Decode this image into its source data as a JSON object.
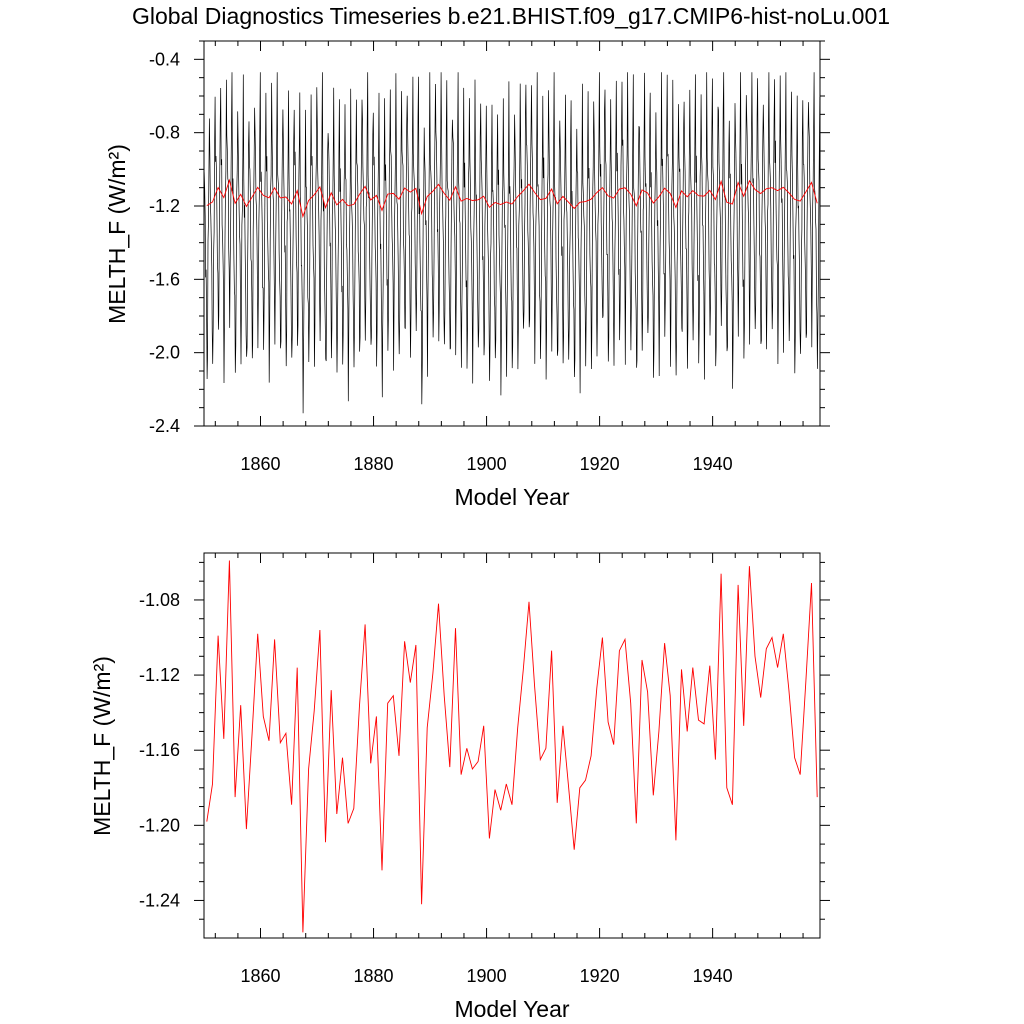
{
  "title": "Global Diagnostics Timeseries b.e21.BHIST.f09_g17.CMIP6-hist-noLu.001",
  "colors": {
    "monthly": "#000000",
    "annual": "#ff0000"
  },
  "chart_data": [
    {
      "type": "line",
      "xlabel": "Model Year",
      "ylabel": "MELTH_F (W/m²)",
      "xlim": [
        1850,
        1959
      ],
      "ylim": [
        -2.4,
        -0.3
      ],
      "x_ticks": [
        1860,
        1880,
        1900,
        1920,
        1940
      ],
      "x_tick_labels": [
        "1860",
        "1880",
        "1900",
        "1920",
        "1940"
      ],
      "y_ticks": [
        -0.4,
        -0.8,
        -1.2,
        -1.6,
        -2.0,
        -2.4
      ],
      "y_tick_labels": [
        "-0.4",
        "-0.8",
        "-1.2",
        "-1.6",
        "-2.0",
        "-2.4"
      ],
      "series": [
        {
          "color": "#000000",
          "resolution": "monthly",
          "start_year": 1850,
          "seasonal_cycle_months_1_to_12": [
            -0.98,
            -1.05,
            -1.2,
            -1.38,
            -1.55,
            -1.72,
            -2.05,
            -1.85,
            -1.42,
            -1.18,
            -0.9,
            -0.58
          ],
          "notes_value_range": [
            -2.33,
            -0.47
          ]
        },
        {
          "color": "#ff0000",
          "resolution": "annual",
          "ref": "annual_mean"
        }
      ]
    },
    {
      "type": "line",
      "xlabel": "Model Year",
      "ylabel": "MELTH_F (W/m²)",
      "xlim": [
        1850,
        1959
      ],
      "ylim": [
        -1.26,
        -1.055
      ],
      "x_ticks": [
        1860,
        1880,
        1900,
        1920,
        1940
      ],
      "x_tick_labels": [
        "1860",
        "1880",
        "1900",
        "1920",
        "1940"
      ],
      "y_ticks": [
        -1.08,
        -1.12,
        -1.16,
        -1.2,
        -1.24
      ],
      "y_tick_labels": [
        "-1.08",
        "-1.12",
        "-1.16",
        "-1.20",
        "-1.24"
      ],
      "series": [
        {
          "color": "#ff0000",
          "ref": "annual_mean"
        }
      ]
    }
  ],
  "annual_mean": {
    "x": [
      1850,
      1851,
      1852,
      1853,
      1854,
      1855,
      1856,
      1857,
      1858,
      1859,
      1860,
      1861,
      1862,
      1863,
      1864,
      1865,
      1866,
      1867,
      1868,
      1869,
      1870,
      1871,
      1872,
      1873,
      1874,
      1875,
      1876,
      1877,
      1878,
      1879,
      1880,
      1881,
      1882,
      1883,
      1884,
      1885,
      1886,
      1887,
      1888,
      1889,
      1890,
      1891,
      1892,
      1893,
      1894,
      1895,
      1896,
      1897,
      1898,
      1899,
      1900,
      1901,
      1902,
      1903,
      1904,
      1905,
      1906,
      1907,
      1908,
      1909,
      1910,
      1911,
      1912,
      1913,
      1914,
      1915,
      1916,
      1917,
      1918,
      1919,
      1920,
      1921,
      1922,
      1923,
      1924,
      1925,
      1926,
      1927,
      1928,
      1929,
      1930,
      1931,
      1932,
      1933,
      1934,
      1935,
      1936,
      1937,
      1938,
      1939,
      1940,
      1941,
      1942,
      1943,
      1944,
      1945,
      1946,
      1947,
      1948,
      1949,
      1950,
      1951,
      1952,
      1953,
      1954,
      1955,
      1956,
      1957,
      1958
    ],
    "y": [
      -1.198,
      -1.178,
      -1.099,
      -1.154,
      -1.059,
      -1.185,
      -1.136,
      -1.202,
      -1.152,
      -1.098,
      -1.142,
      -1.155,
      -1.101,
      -1.156,
      -1.151,
      -1.189,
      -1.116,
      -1.257,
      -1.17,
      -1.139,
      -1.096,
      -1.209,
      -1.128,
      -1.194,
      -1.164,
      -1.199,
      -1.191,
      -1.137,
      -1.093,
      -1.167,
      -1.142,
      -1.224,
      -1.135,
      -1.131,
      -1.163,
      -1.102,
      -1.124,
      -1.104,
      -1.242,
      -1.148,
      -1.119,
      -1.082,
      -1.131,
      -1.169,
      -1.095,
      -1.173,
      -1.159,
      -1.17,
      -1.166,
      -1.147,
      -1.207,
      -1.181,
      -1.192,
      -1.178,
      -1.189,
      -1.148,
      -1.117,
      -1.081,
      -1.126,
      -1.165,
      -1.159,
      -1.107,
      -1.188,
      -1.147,
      -1.179,
      -1.213,
      -1.18,
      -1.176,
      -1.163,
      -1.127,
      -1.1,
      -1.145,
      -1.157,
      -1.107,
      -1.101,
      -1.135,
      -1.199,
      -1.112,
      -1.129,
      -1.184,
      -1.15,
      -1.103,
      -1.131,
      -1.208,
      -1.117,
      -1.15,
      -1.116,
      -1.144,
      -1.146,
      -1.115,
      -1.165,
      -1.066,
      -1.18,
      -1.189,
      -1.072,
      -1.147,
      -1.062,
      -1.11,
      -1.132,
      -1.106,
      -1.1,
      -1.116,
      -1.098,
      -1.128,
      -1.164,
      -1.173,
      -1.123,
      -1.071,
      -1.185
    ]
  }
}
